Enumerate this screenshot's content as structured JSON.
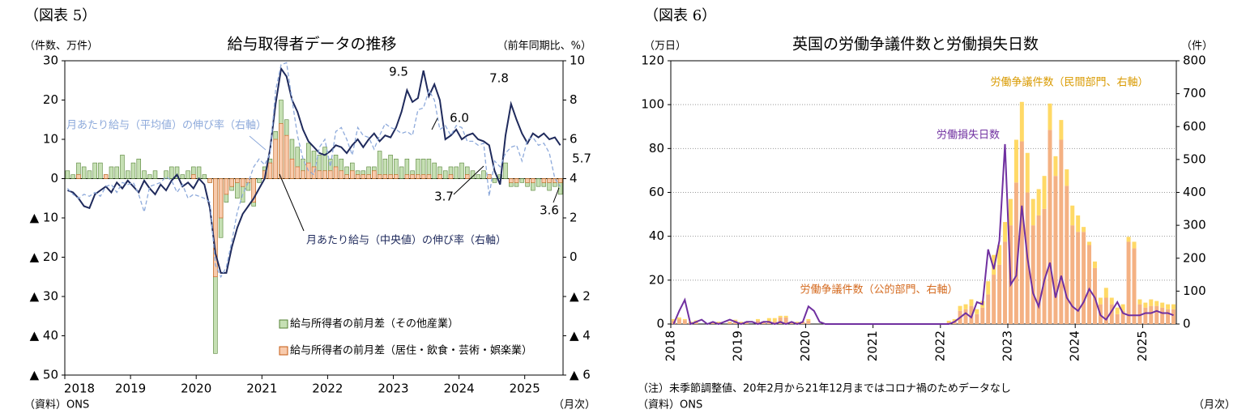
{
  "chart_data": [
    {
      "type": "combo",
      "figure_label": "（図表 5）",
      "title": "給与取得者データの推移",
      "left_axis_label": "（件数、万件）",
      "right_axis_label": "（前年同期比、%）",
      "source": "（資料）ONS",
      "x_unit": "（月次）",
      "stacked": false,
      "grid": false,
      "legend": "bottom",
      "categories": [
        "2018",
        null,
        null,
        null,
        null,
        null,
        null,
        null,
        null,
        null,
        null,
        null,
        "2019",
        null,
        null,
        null,
        null,
        null,
        null,
        null,
        null,
        null,
        null,
        null,
        "2020",
        null,
        null,
        null,
        null,
        null,
        null,
        null,
        null,
        null,
        null,
        null,
        "2021",
        null,
        null,
        null,
        null,
        null,
        null,
        null,
        null,
        null,
        null,
        null,
        "2022",
        null,
        null,
        null,
        null,
        null,
        null,
        null,
        null,
        null,
        null,
        null,
        "2023",
        null,
        null,
        null,
        null,
        null,
        null,
        null,
        null,
        null,
        null,
        null,
        "2024",
        null,
        null,
        null,
        null,
        null,
        null,
        null,
        null,
        null,
        null,
        null,
        "2025",
        null,
        null,
        null,
        null,
        null,
        null
      ],
      "ylim": [
        -50,
        30
      ],
      "yticks": [
        {
          "value": -50,
          "label": "▲ 50"
        },
        {
          "value": -40,
          "label": "▲ 40"
        },
        {
          "value": -30,
          "label": "▲ 30"
        },
        {
          "value": -20,
          "label": "▲ 20"
        },
        {
          "value": -10,
          "label": "▲ 10"
        },
        0,
        10,
        20,
        30
      ],
      "y2lim": [
        -6,
        10
      ],
      "y2ticks": [
        {
          "value": -6,
          "label": "▲ 6"
        },
        {
          "value": -4,
          "label": "▲ 4"
        },
        {
          "value": -2,
          "label": "▲ 2"
        },
        0,
        2,
        4,
        6,
        8,
        10
      ],
      "series": [
        {
          "name": "給与所得者の前月差（その他産業）",
          "type": "bar",
          "axis": "y",
          "color": "#c6e0b4",
          "stroke": "#548235",
          "values": [
            2,
            1,
            4,
            3,
            2,
            4,
            4,
            1,
            3,
            3,
            6,
            2,
            4,
            5,
            2,
            1,
            2,
            0,
            2,
            3,
            3,
            1,
            2,
            3,
            3,
            1,
            -1,
            -44.5,
            -15,
            -6,
            -3,
            -5,
            -6,
            -3,
            -7,
            -1,
            3,
            5,
            12,
            20,
            15,
            10,
            8,
            5,
            9,
            7,
            6,
            8,
            5,
            6,
            5,
            3,
            4,
            2,
            2,
            3,
            3,
            7,
            5,
            6,
            5,
            3,
            5,
            2,
            5,
            5,
            5,
            4,
            3,
            2,
            3,
            3,
            4,
            3,
            2,
            1,
            2,
            1,
            -1,
            1,
            4,
            -2,
            -2,
            -1,
            -2,
            -3,
            -2,
            -2,
            -3,
            -2,
            -4
          ]
        },
        {
          "name": "給与所得者の前月差（居住・飲食・芸術・娯楽業）",
          "type": "bar",
          "axis": "y",
          "color": "#f8cbad",
          "stroke": "#c55a11",
          "values": [
            0,
            0,
            1,
            0,
            0,
            0,
            0,
            1,
            0,
            0,
            0,
            0,
            0,
            0,
            0,
            0,
            0,
            0,
            0,
            0,
            0,
            0,
            0,
            1,
            0,
            0,
            -1,
            -25,
            -10,
            -4,
            -2,
            -1,
            -2,
            -1,
            -6,
            0,
            2,
            4,
            10,
            14,
            11,
            5,
            3,
            2,
            4,
            3,
            2,
            2,
            2,
            3,
            2,
            1,
            2,
            1,
            1,
            1,
            2,
            1,
            1,
            1,
            1,
            0,
            1,
            1,
            1,
            1,
            1,
            0,
            1,
            0,
            1,
            0,
            0,
            1,
            0,
            0,
            0,
            1,
            0,
            0,
            0,
            -1,
            -1,
            0,
            -1,
            -1,
            0,
            -1,
            -1,
            -1,
            -1
          ]
        },
        {
          "name": "月あたり給与（中央値）の伸び率（右軸）",
          "type": "line",
          "axis": "y2",
          "color": "#1f2a5c",
          "dashed": false,
          "values": [
            3.4,
            3.3,
            3.0,
            2.6,
            2.5,
            3.2,
            3.4,
            3.6,
            3.3,
            3.8,
            3.5,
            3.9,
            3.6,
            3.3,
            3.9,
            3.5,
            3.2,
            3.7,
            3.4,
            3.9,
            4.2,
            3.6,
            3.8,
            3.5,
            4.0,
            3.7,
            2.5,
            0.2,
            -0.8,
            -0.8,
            0.5,
            1.5,
            2.2,
            2.6,
            3.0,
            3.5,
            4.0,
            5.5,
            7.8,
            9.6,
            9.2,
            8.0,
            7.4,
            6.5,
            5.9,
            5.6,
            5.3,
            5.2,
            5.4,
            5.7,
            5.6,
            5.3,
            5.7,
            6.0,
            5.6,
            6.0,
            6.3,
            5.9,
            6.2,
            6.1,
            6.6,
            7.4,
            8.5,
            7.9,
            8.1,
            9.5,
            8.2,
            8.8,
            8.0,
            6.0,
            6.2,
            6.5,
            6.0,
            6.2,
            6.3,
            6.0,
            5.9,
            5.7,
            4.4,
            3.7,
            6.2,
            7.8,
            7.0,
            6.3,
            5.8,
            6.3,
            6.1,
            6.3,
            6.0,
            6.1,
            5.7
          ]
        },
        {
          "name": "月あたり給与（平均値）の伸び率（右軸）",
          "type": "line",
          "axis": "y2",
          "color": "#8eaadb",
          "dashed": true,
          "values": [
            3.5,
            3.2,
            3.0,
            3.2,
            3.1,
            3.3,
            3.1,
            3.6,
            3.7,
            3.3,
            3.8,
            3.7,
            3.8,
            3.2,
            2.3,
            3.6,
            3.7,
            3.8,
            4.1,
            3.9,
            3.3,
            3.7,
            3.0,
            3.2,
            3.1,
            3.0,
            2.8,
            -0.4,
            -1.0,
            -0.5,
            0.8,
            2.3,
            3.2,
            3.8,
            4.6,
            5.0,
            4.7,
            5.3,
            8.5,
            9.8,
            9.9,
            8.0,
            6.2,
            5.0,
            4.4,
            4.2,
            5.6,
            6.0,
            4.6,
            6.4,
            6.6,
            6.0,
            5.2,
            6.6,
            6.2,
            6.1,
            5.5,
            6.2,
            6.8,
            6.6,
            6.5,
            6.3,
            6.4,
            6.2,
            7.5,
            7.6,
            8.5,
            8.0,
            6.5,
            6.7,
            6.2,
            6.7,
            6.6,
            5.9,
            5.9,
            5.7,
            5.8,
            3.1,
            4.9,
            4.6,
            5.3,
            5.6,
            5.7,
            4.9,
            6.0,
            6.1,
            5.7,
            5.8,
            5.3,
            4.0,
            3.6
          ]
        }
      ],
      "annotations": [
        "9.5",
        "7.8",
        "6.0",
        "5.7",
        "3.7",
        "3.6"
      ]
    },
    {
      "type": "combo",
      "figure_label": "（図表 6）",
      "title": "英国の労働争議件数と労働損失日数",
      "left_axis_label": "（万日）",
      "right_axis_label": "（件）",
      "note": "（注）未季節調整値、20年2月から21年12月まではコロナ禍のためデータなし",
      "source": "（資料）ONS",
      "x_unit": "（月次）",
      "stacked": true,
      "grid": true,
      "categories": [
        "2018",
        null,
        null,
        null,
        null,
        null,
        null,
        null,
        null,
        null,
        null,
        null,
        "2019",
        null,
        null,
        null,
        null,
        null,
        null,
        null,
        null,
        null,
        null,
        null,
        "2020",
        null,
        null,
        null,
        null,
        null,
        null,
        null,
        null,
        null,
        null,
        null,
        "2021",
        null,
        null,
        null,
        null,
        null,
        null,
        null,
        null,
        null,
        null,
        null,
        "2022",
        null,
        null,
        null,
        null,
        null,
        null,
        null,
        null,
        null,
        null,
        null,
        "2023",
        null,
        null,
        null,
        null,
        null,
        null,
        null,
        null,
        null,
        null,
        null,
        "2024",
        null,
        null,
        null,
        null,
        null,
        null,
        null,
        null,
        null,
        null,
        null,
        "2025",
        null,
        null,
        null,
        null,
        null
      ],
      "ylim": [
        0,
        120
      ],
      "yticks": [
        0,
        20,
        40,
        60,
        80,
        100,
        120
      ],
      "y2lim": [
        0,
        800
      ],
      "y2ticks": [
        0,
        100,
        200,
        300,
        400,
        500,
        600,
        700,
        800
      ],
      "series": [
        {
          "name": "労働争議件数（公的部門、右軸）",
          "type": "bar",
          "axis": "y2",
          "color": "#f4b183",
          "values": [
            10,
            15,
            12,
            5,
            8,
            0,
            0,
            5,
            5,
            0,
            5,
            10,
            5,
            5,
            0,
            10,
            5,
            8,
            8,
            20,
            20,
            5,
            5,
            5,
            10,
            null,
            null,
            null,
            null,
            null,
            null,
            null,
            null,
            null,
            null,
            null,
            null,
            null,
            null,
            null,
            null,
            null,
            null,
            null,
            null,
            null,
            null,
            null,
            0,
            5,
            10,
            40,
            45,
            55,
            30,
            50,
            90,
            150,
            180,
            250,
            300,
            430,
            555,
            400,
            300,
            330,
            350,
            590,
            450,
            560,
            420,
            300,
            280,
            280,
            240,
            170,
            60,
            80,
            60,
            30,
            40,
            250,
            230,
            60,
            50,
            55,
            55,
            50,
            45,
            45
          ]
        },
        {
          "name": "労働争議件数（民間部門、右軸）",
          "type": "bar",
          "axis": "y2",
          "color": "#ffd966",
          "values": [
            5,
            5,
            3,
            2,
            3,
            0,
            0,
            2,
            2,
            0,
            2,
            3,
            2,
            2,
            0,
            5,
            3,
            10,
            10,
            5,
            5,
            2,
            2,
            2,
            5,
            null,
            null,
            null,
            null,
            null,
            null,
            null,
            null,
            null,
            null,
            null,
            null,
            null,
            null,
            null,
            null,
            null,
            null,
            null,
            null,
            null,
            null,
            null,
            0,
            5,
            5,
            15,
            15,
            20,
            15,
            20,
            40,
            60,
            60,
            60,
            80,
            130,
            120,
            120,
            80,
            80,
            100,
            80,
            60,
            60,
            50,
            60,
            50,
            15,
            10,
            20,
            20,
            30,
            20,
            20,
            20,
            15,
            20,
            15,
            15,
            20,
            15,
            15,
            15,
            15
          ]
        },
        {
          "name": "労働損失日数",
          "type": "line",
          "axis": "y",
          "color": "#7030a0",
          "dashed": false,
          "values": [
            0,
            6,
            11,
            0,
            1,
            2,
            0,
            1,
            0,
            1,
            2,
            1,
            0,
            1,
            1,
            0,
            1,
            1,
            0,
            1,
            0,
            1,
            0,
            1,
            8,
            6,
            1,
            0,
            0,
            0,
            0,
            0,
            0,
            0,
            0,
            0,
            0,
            0,
            0,
            0,
            0,
            0,
            0,
            0,
            0,
            0,
            0,
            0,
            0,
            0,
            1,
            3,
            5,
            3,
            10,
            9,
            34,
            25,
            38,
            82,
            18,
            22,
            54,
            30,
            14,
            8,
            20,
            28,
            12,
            22,
            12,
            8,
            6,
            10,
            16,
            12,
            4,
            2,
            6,
            10,
            5,
            4,
            4,
            4,
            5,
            5,
            6,
            5,
            5,
            4
          ]
        }
      ]
    }
  ]
}
